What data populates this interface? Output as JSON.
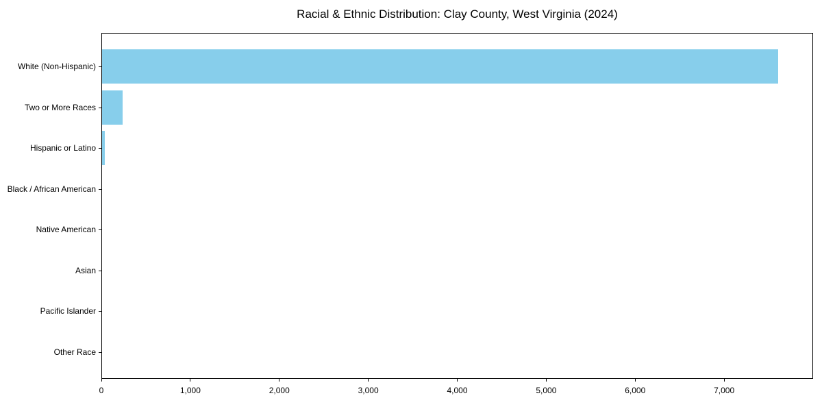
{
  "chart_data": {
    "type": "bar",
    "orientation": "horizontal",
    "title": "Racial & Ethnic Distribution: Clay County, West Virginia (2024)",
    "categories": [
      "White (Non-Hispanic)",
      "Two or More Races",
      "Hispanic or Latino",
      "Black / African American",
      "Native American",
      "Asian",
      "Pacific Islander",
      "Other Race"
    ],
    "values": [
      7600,
      230,
      30,
      0,
      0,
      0,
      0,
      0
    ],
    "xlabel": "",
    "ylabel": "",
    "xlim": [
      0,
      8000
    ],
    "xticks": [
      0,
      1000,
      2000,
      3000,
      4000,
      5000,
      6000,
      7000
    ],
    "xtick_labels": [
      "0",
      "1,000",
      "2,000",
      "3,000",
      "4,000",
      "5,000",
      "6,000",
      "7,000"
    ],
    "bar_color": "#87CEEB",
    "frame_color": "#000000",
    "grid": false,
    "legend": "none"
  }
}
